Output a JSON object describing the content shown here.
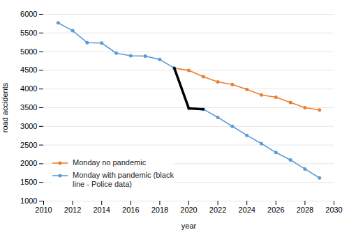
{
  "chart_data": {
    "type": "line",
    "xlabel": "year",
    "ylabel": "road accidents",
    "xlim": [
      2010,
      2030
    ],
    "ylim": [
      1000,
      6000
    ],
    "xticks": [
      2010,
      2012,
      2014,
      2016,
      2018,
      2020,
      2022,
      2024,
      2026,
      2028,
      2030
    ],
    "yticks": [
      1000,
      1500,
      2000,
      2500,
      3000,
      3500,
      4000,
      4500,
      5000,
      5500,
      6000
    ],
    "grid": "y",
    "legend": "lower left",
    "series": [
      {
        "name": "Monday no pandemic",
        "color": "#ed7d31",
        "marker": "circle",
        "x": [
          2019,
          2020,
          2021,
          2022,
          2023,
          2024,
          2025,
          2026,
          2027,
          2028,
          2029
        ],
        "values": [
          4560,
          4500,
          4330,
          4190,
          4120,
          3990,
          3840,
          3780,
          3640,
          3500,
          3440
        ]
      },
      {
        "color": "#5b9bd5",
        "marker": "circle",
        "x": [
          2011,
          2012,
          2013,
          2014,
          2015,
          2016,
          2017,
          2018,
          2019
        ],
        "values": [
          5770,
          5560,
          5240,
          5230,
          4960,
          4890,
          4880,
          4790,
          4560
        ]
      },
      {
        "name": "Monday with pandemic (black\nline - Police data)",
        "color": "#5b9bd5",
        "marker": "circle",
        "x": [
          2020,
          2021,
          2022,
          2023,
          2024,
          2025,
          2026,
          2027,
          2028,
          2029
        ],
        "values": [
          3480,
          3460,
          3240,
          3000,
          2760,
          2540,
          2300,
          2100,
          1860,
          1620
        ]
      },
      {
        "color": "#000000",
        "marker": "none",
        "x": [
          2019,
          2020,
          2021
        ],
        "values": [
          4560,
          3480,
          3460
        ]
      }
    ]
  }
}
